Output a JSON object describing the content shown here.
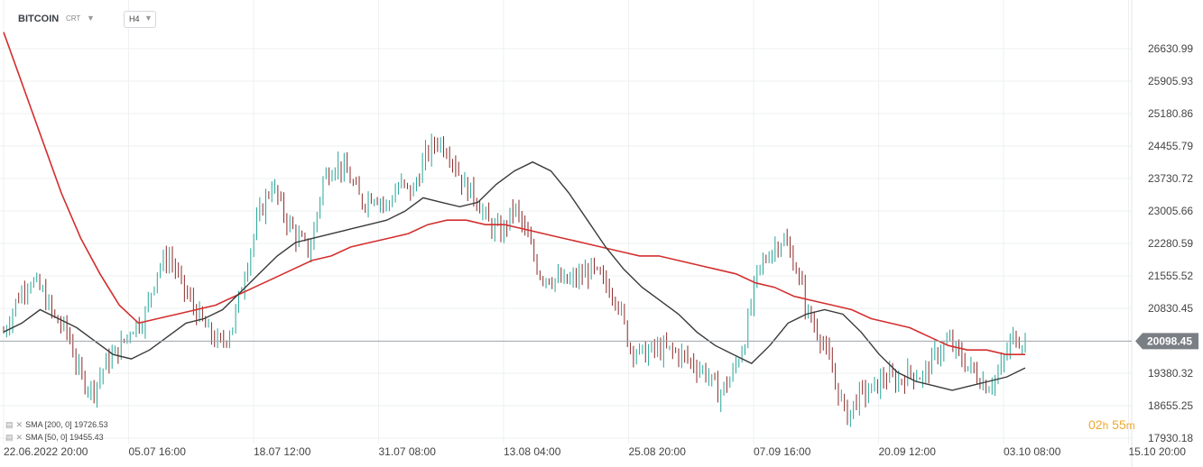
{
  "toolbar": {
    "symbol": "BITCOIN",
    "chart_type": "CRT",
    "timeframe": "H4"
  },
  "legend": [
    {
      "label": "SMA  [200,  0]  19726.53",
      "color": "#d32f2f"
    },
    {
      "label": "SMA  [50,  0]  19455.43",
      "color": "#3a3a3a"
    }
  ],
  "timer": {
    "hours": "02",
    "h": "h",
    "minutes": "55",
    "m": "m"
  },
  "chart_data": {
    "type": "candlestick",
    "y_ticks": [
      "26630.99",
      "25905.93",
      "25180.86",
      "24455.79",
      "23730.72",
      "23005.66",
      "22280.59",
      "21555.52",
      "20830.45",
      "19380.32",
      "18655.25",
      "17930.18"
    ],
    "ylim": [
      17930.18,
      26630.99
    ],
    "x_ticks": [
      "22.06.2022  20:00",
      "05.07  16:00",
      "18.07  12:00",
      "31.07  08:00",
      "13.08  04:00",
      "25.08  20:00",
      "07.09  16:00",
      "20.09  12:00",
      "03.10  08:00",
      "15.10  20:00"
    ],
    "current_price": "20098.45",
    "colors": {
      "up": "#26a69a",
      "down": "#8b2a2a",
      "sma200": "#d32f2f",
      "sma50": "#3a3a3a",
      "price_line": "#9ea3a8",
      "grid": "#eef0f2",
      "badge": "#7a7f85"
    },
    "closes": [
      20300,
      21000,
      21500,
      21200,
      20600,
      20300,
      19300,
      19000,
      19600,
      19900,
      20400,
      20600,
      21700,
      22000,
      21300,
      20800,
      20300,
      20000,
      20500,
      21800,
      22900,
      23600,
      22900,
      22400,
      22100,
      23700,
      24100,
      23800,
      23200,
      23400,
      23100,
      23600,
      23400,
      24200,
      24600,
      24300,
      23600,
      23300,
      22700,
      22500,
      23100,
      22400,
      21600,
      21500,
      21400,
      21500,
      21700,
      21400,
      21100,
      20000,
      19800,
      19900,
      19900,
      19800,
      19600,
      19400,
      18900,
      19300,
      20100,
      21600,
      22100,
      22400,
      21800,
      20700,
      20200,
      19300,
      18400,
      18900,
      19000,
      19300,
      19200,
      19400,
      19300,
      19800,
      20100,
      19700,
      19400,
      19100,
      19400,
      20200,
      20100
    ],
    "sma200": [
      27000,
      25800,
      24600,
      23400,
      22400,
      21600,
      20900,
      20500,
      20600,
      20700,
      20800,
      20900,
      21100,
      21300,
      21500,
      21700,
      21900,
      22000,
      22200,
      22300,
      22400,
      22500,
      22700,
      22800,
      22800,
      22700,
      22700,
      22600,
      22500,
      22400,
      22300,
      22200,
      22100,
      22000,
      22000,
      21900,
      21800,
      21700,
      21600,
      21400,
      21300,
      21100,
      21000,
      20900,
      20800,
      20600,
      20500,
      20400,
      20200,
      20000,
      19900,
      19900,
      19800,
      19800
    ],
    "sma50": [
      20300,
      20500,
      20800,
      20600,
      20400,
      20100,
      19800,
      19700,
      19900,
      20200,
      20500,
      20600,
      20800,
      21200,
      21600,
      22000,
      22300,
      22400,
      22500,
      22600,
      22700,
      22800,
      23000,
      23300,
      23200,
      23100,
      23200,
      23600,
      23900,
      24100,
      23900,
      23400,
      22800,
      22200,
      21700,
      21300,
      21000,
      20700,
      20300,
      20000,
      19800,
      19600,
      20000,
      20500,
      20700,
      20800,
      20700,
      20300,
      19800,
      19400,
      19200,
      19100,
      19000,
      19100,
      19200,
      19300,
      19500
    ]
  }
}
